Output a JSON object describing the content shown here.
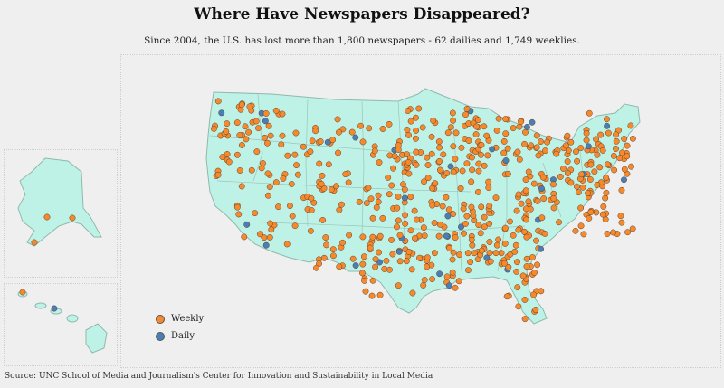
{
  "title": "Where Have Newspapers Disappeared?",
  "subtitle": "Since 2004, the U.S. has lost more than 1,800 newspapers - 62 dailies and 1,749 weeklies.",
  "legend": [
    {
      "label": "Weekly",
      "color": "#f5892b"
    },
    {
      "label": "Daily",
      "color": "#4a7fb5"
    }
  ],
  "source": "Source: UNC School of Media and Journalism's Center for Innovation and Sustainability in Local Media",
  "colors": {
    "land": "#bff2e6",
    "border": "#8fb9ad",
    "background": "#efefef"
  }
}
